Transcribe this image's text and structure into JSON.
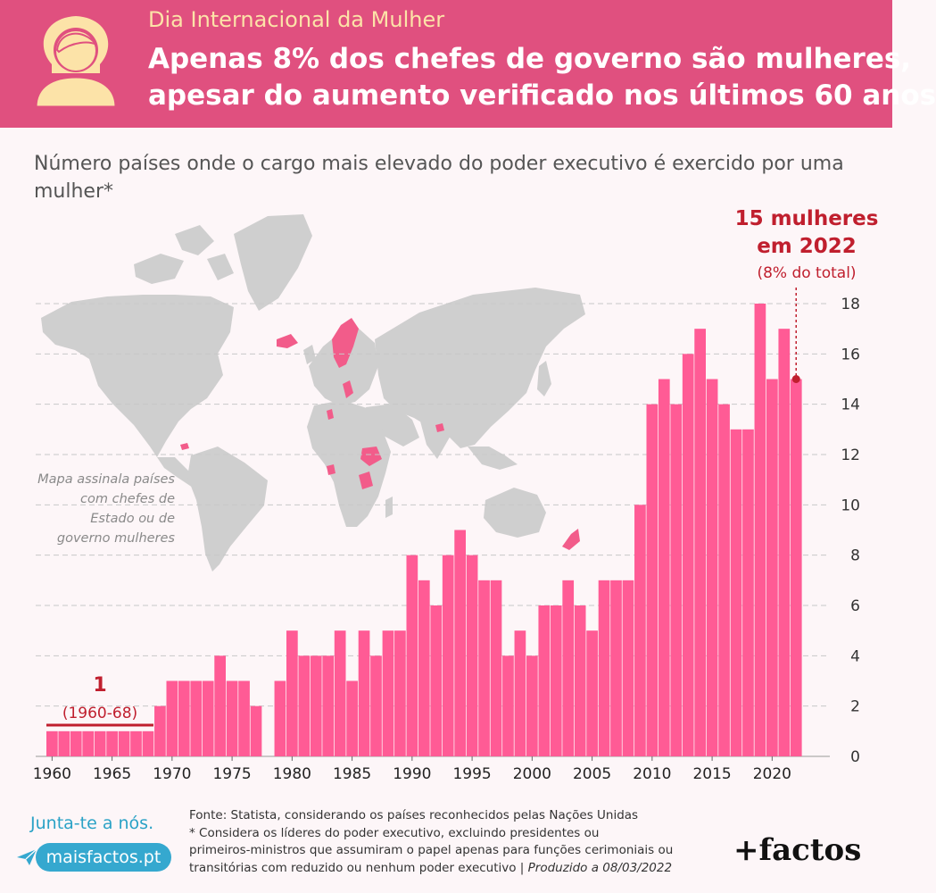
{
  "header": {
    "subtitle": "Dia Internacional da Mulher",
    "title_line1": "Apenas 8% dos chefes de governo são mulheres,",
    "title_line2": "apesar do aumento verificado nos últimos 60 anos"
  },
  "colors": {
    "header_bg": "#e0507f",
    "bar": "#ff5b95",
    "highlight": "#c01f2e",
    "map_land": "#cfcfcf",
    "map_highlight": "#f25c8a"
  },
  "icons": {
    "avatar": "woman-avatar-icon",
    "plane": "paper-plane-icon"
  },
  "map_note": "Mapa assinala países com chefes de Estado ou de governo mulheres",
  "chart_data": {
    "type": "bar",
    "title": "Número países onde o cargo mais elevado do poder executivo é exercido por uma mulher*",
    "xlabel": "",
    "ylabel": "",
    "ylim": [
      0,
      18
    ],
    "yticks": [
      "0",
      "2",
      "4",
      "6",
      "8",
      "10",
      "12",
      "14",
      "16",
      "18"
    ],
    "xticks": [
      "1960",
      "1965",
      "1970",
      "1975",
      "1980",
      "1985",
      "1990",
      "1995",
      "2000",
      "2005",
      "2010",
      "2015",
      "2020"
    ],
    "categories": [
      1960,
      1961,
      1962,
      1963,
      1964,
      1965,
      1966,
      1967,
      1968,
      1969,
      1970,
      1971,
      1972,
      1973,
      1974,
      1975,
      1976,
      1977,
      1978,
      1979,
      1980,
      1981,
      1982,
      1983,
      1984,
      1985,
      1986,
      1987,
      1988,
      1989,
      1990,
      1991,
      1992,
      1993,
      1994,
      1995,
      1996,
      1997,
      1998,
      1999,
      2000,
      2001,
      2002,
      2003,
      2004,
      2005,
      2006,
      2007,
      2008,
      2009,
      2010,
      2011,
      2012,
      2013,
      2014,
      2015,
      2016,
      2017,
      2018,
      2019,
      2020,
      2021,
      2022
    ],
    "values": [
      1,
      1,
      1,
      1,
      1,
      1,
      1,
      1,
      1,
      2,
      3,
      3,
      3,
      3,
      4,
      3,
      3,
      2,
      0,
      3,
      5,
      4,
      4,
      4,
      5,
      3,
      5,
      4,
      5,
      5,
      8,
      7,
      6,
      8,
      9,
      8,
      7,
      7,
      4,
      5,
      4,
      6,
      6,
      7,
      6,
      5,
      7,
      7,
      7,
      10,
      14,
      15,
      14,
      16,
      17,
      15,
      14,
      13,
      13,
      18,
      15,
      17,
      15
    ],
    "grid": true,
    "annotations": {
      "start_value": "1",
      "start_period": "(1960-68)",
      "end_line1": "15 mulheres",
      "end_line2": "em 2022",
      "end_pct": "(8% do total)"
    }
  },
  "footer": {
    "join": "Junta-te a nós.",
    "site": "maisfactos.pt",
    "source_line1": "Fonte: Statista, considerando os países reconhecidos pelas Nações Unidas",
    "source_line2": "* Considera os líderes do poder executivo, excluindo presidentes ou",
    "source_line3": "primeiros-ministros que assumiram o papel apenas para funções cerimoniais ou",
    "source_line4": "transitórias com reduzido ou nenhum poder executivo |",
    "produced": "Produzido a 08/03/2022",
    "brand": "+factos"
  }
}
